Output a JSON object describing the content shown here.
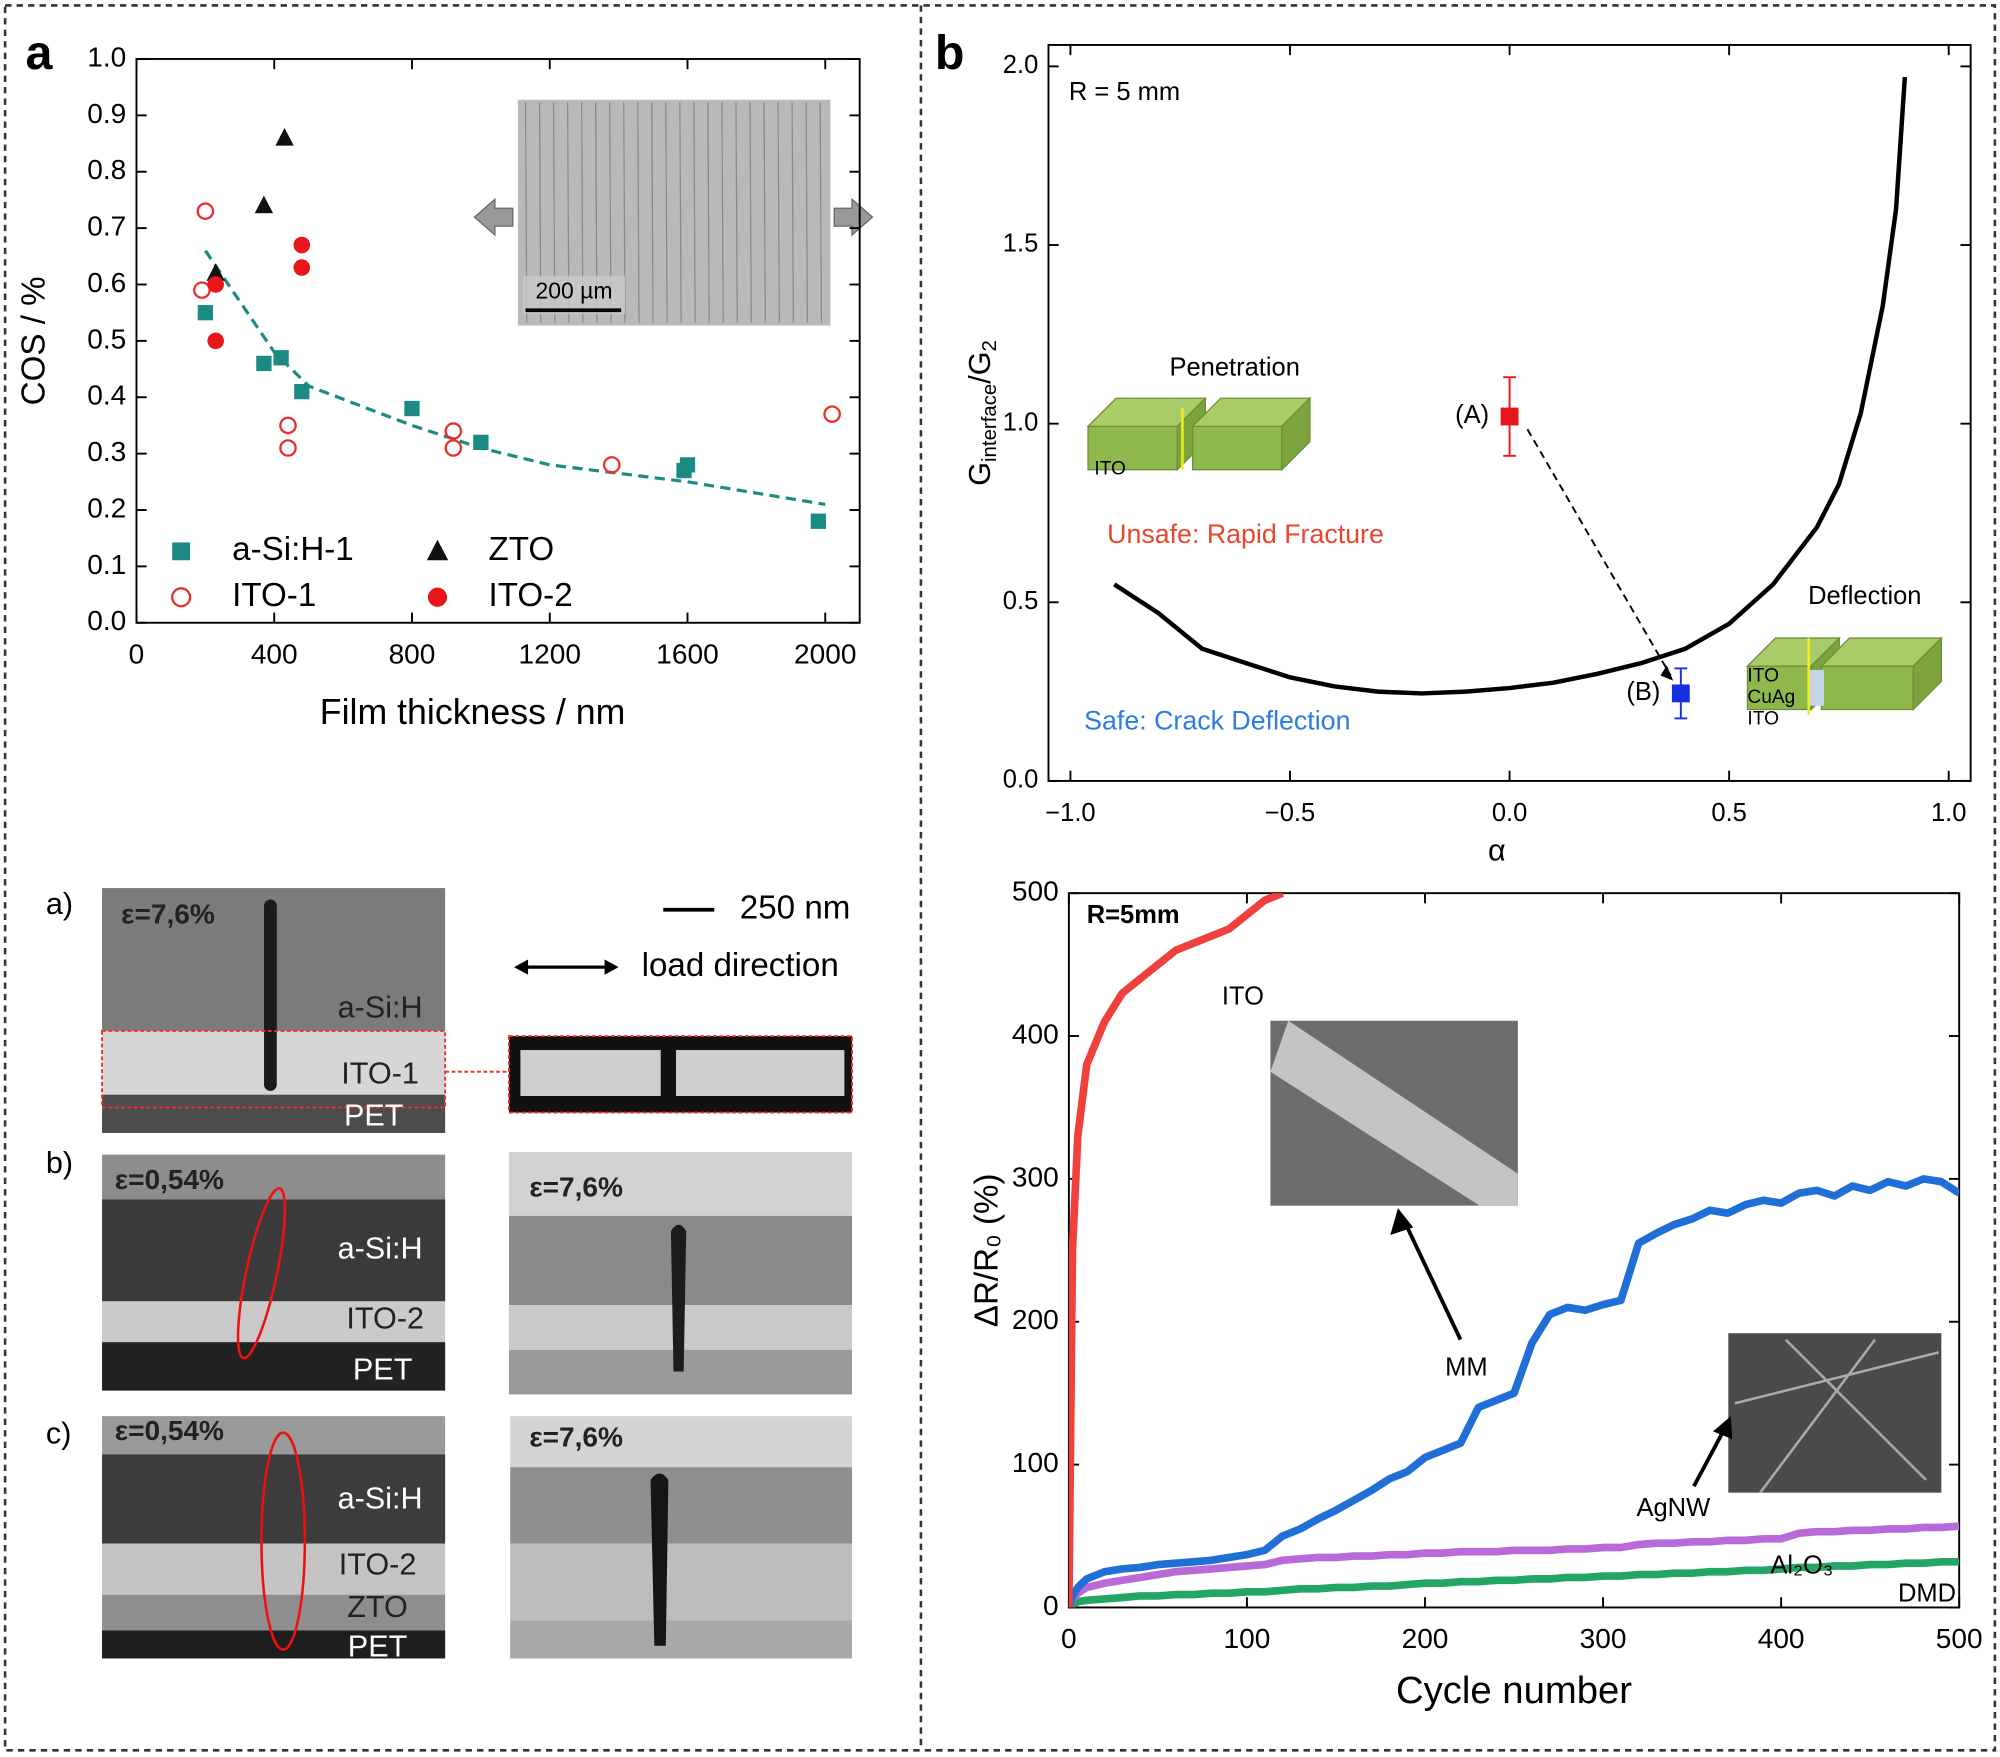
{
  "panel_labels": [
    "a",
    "b"
  ],
  "chart_data": [
    {
      "type": "scatter",
      "xlabel": "Film thickness / nm",
      "ylabel": "COS / %",
      "xlim": [
        0,
        2100
      ],
      "ylim": [
        0,
        1.0
      ],
      "xticks": [
        0,
        400,
        800,
        1200,
        1600,
        2000
      ],
      "yticks": [
        {
          "value": 0,
          "label": "0.0"
        },
        0.1,
        0.2,
        0.3,
        0.4,
        0.5,
        0.6,
        0.7,
        0.8,
        0.9,
        {
          "value": 1,
          "label": "1.0"
        }
      ],
      "legend": "lower left",
      "series": [
        {
          "name": "a-Si:H-1",
          "marker": "square",
          "color": "#1b8a83",
          "x": [
            200,
            370,
            420,
            480,
            800,
            1000,
            1590,
            1600,
            1980
          ],
          "values": [
            0.55,
            0.46,
            0.47,
            0.41,
            0.38,
            0.32,
            0.27,
            0.28,
            0.18
          ]
        },
        {
          "name": "ZTO",
          "marker": "triangle",
          "color": "#111111",
          "x": [
            230,
            370,
            430
          ],
          "values": [
            0.62,
            0.74,
            0.86
          ]
        },
        {
          "name": "ITO-1",
          "marker": "open-circle",
          "color": "#e8312f",
          "x": [
            200,
            190,
            440,
            440,
            920,
            920,
            1380,
            2020
          ],
          "values": [
            0.73,
            0.59,
            0.35,
            0.31,
            0.34,
            0.31,
            0.28,
            0.37
          ]
        },
        {
          "name": "ITO-2",
          "marker": "circle",
          "color": "#e8161b",
          "x": [
            230,
            230,
            480,
            480
          ],
          "values": [
            0.6,
            0.5,
            0.67,
            0.63
          ]
        }
      ],
      "fit": {
        "style": "dashed",
        "color": "#1b8a83",
        "x": [
          200,
          400,
          500,
          800,
          1000,
          1200,
          1600,
          2000
        ],
        "values": [
          0.66,
          0.48,
          0.42,
          0.35,
          0.31,
          0.28,
          0.25,
          0.21
        ]
      },
      "inset_scale": "200 µm"
    },
    {
      "type": "line",
      "annotation": "R = 5 mm",
      "ylabel_parts": [
        "G",
        "interface",
        "/G",
        "2"
      ],
      "xlabel": "α",
      "xlim": [
        -1.05,
        1.05
      ],
      "ylim": [
        0,
        2.06
      ],
      "xticks": [
        {
          "value": -1,
          "label": "−1.0"
        },
        {
          "value": -0.5,
          "label": "−0.5"
        },
        {
          "value": 0,
          "label": "0.0"
        },
        0.5,
        {
          "value": 1,
          "label": "1.0"
        }
      ],
      "yticks": [
        {
          "value": 0,
          "label": "0.0"
        },
        0.5,
        {
          "value": 1,
          "label": "1.0"
        },
        1.5,
        {
          "value": 2,
          "label": "2.0"
        }
      ],
      "x": [
        -0.9,
        -0.8,
        -0.7,
        -0.6,
        -0.5,
        -0.4,
        -0.3,
        -0.2,
        -0.1,
        0,
        0.1,
        0.2,
        0.3,
        0.4,
        0.5,
        0.6,
        0.7,
        0.75,
        0.8,
        0.85,
        0.88,
        0.9
      ],
      "series": [
        {
          "color": "#000000",
          "values": [
            0.55,
            0.47,
            0.37,
            0.33,
            0.29,
            0.265,
            0.25,
            0.245,
            0.25,
            0.26,
            0.275,
            0.3,
            0.33,
            0.37,
            0.44,
            0.55,
            0.71,
            0.83,
            1.03,
            1.33,
            1.6,
            1.97
          ]
        }
      ],
      "points": [
        {
          "label": "(A)",
          "x": 0,
          "value": 1.02,
          "error": 0.11,
          "color": "#e8161b"
        },
        {
          "label": "(B)",
          "x": 0.39,
          "value": 0.245,
          "error": 0.07,
          "color": "#1530e0"
        }
      ],
      "regions": [
        {
          "text": "Unsafe: Rapid Fracture",
          "color": "#e8462f"
        },
        {
          "text": "Safe: Crack Deflection",
          "color": "#2a7de1"
        }
      ],
      "schematics": [
        {
          "title": "Penetration",
          "layers": [
            "ITO"
          ]
        },
        {
          "title": "Deflection",
          "layers": [
            "ITO",
            "CuAg",
            "ITO"
          ]
        }
      ]
    },
    {
      "type": "line",
      "annotation": "R=5mm",
      "ylabel": "ΔR/R₀ (%)",
      "xlabel": "Cycle number",
      "xlim": [
        0,
        500
      ],
      "ylim": [
        0,
        500
      ],
      "xticks": [
        0,
        100,
        200,
        300,
        400,
        500
      ],
      "yticks": [
        0,
        100,
        200,
        300,
        400,
        500
      ],
      "x": [
        0,
        2,
        5,
        10,
        20,
        30,
        40,
        50,
        60,
        70,
        80,
        90,
        100,
        110,
        120,
        130,
        140,
        150,
        160,
        170,
        180,
        190,
        200,
        210,
        220,
        230,
        240,
        250,
        260,
        270,
        280,
        290,
        300,
        310,
        320,
        330,
        340,
        350,
        360,
        370,
        380,
        390,
        400,
        410,
        420,
        430,
        440,
        450,
        460,
        470,
        480,
        490,
        500
      ],
      "series": [
        {
          "name": "ITO",
          "color": "#f0403c",
          "values": [
            0,
            250,
            330,
            380,
            410,
            430,
            440,
            450,
            460,
            465,
            470,
            475,
            485,
            495,
            500,
            null,
            null,
            null,
            null,
            null,
            null,
            null,
            null,
            null,
            null,
            null,
            null,
            null,
            null,
            null,
            null,
            null,
            null,
            null,
            null,
            null,
            null,
            null,
            null,
            null,
            null,
            null,
            null,
            null,
            null,
            null,
            null,
            null,
            null,
            null,
            null,
            null,
            null
          ]
        },
        {
          "name": "MM",
          "color": "#1f6fd6",
          "values": [
            0,
            8,
            14,
            20,
            25,
            27,
            28,
            30,
            31,
            32,
            33,
            35,
            37,
            40,
            50,
            55,
            62,
            68,
            75,
            82,
            90,
            95,
            105,
            110,
            115,
            140,
            145,
            150,
            185,
            205,
            210,
            208,
            212,
            215,
            255,
            262,
            268,
            272,
            278,
            276,
            282,
            285,
            283,
            290,
            292,
            288,
            295,
            292,
            298,
            295,
            300,
            298,
            290
          ]
        },
        {
          "name": "AgNW",
          "color": "#b86ad8",
          "values": [
            0,
            6,
            10,
            14,
            17,
            19,
            21,
            23,
            25,
            26,
            27,
            28,
            29,
            30,
            33,
            34,
            35,
            35,
            36,
            36,
            37,
            37,
            38,
            38,
            39,
            39,
            39,
            40,
            40,
            40,
            41,
            41,
            42,
            42,
            44,
            45,
            45,
            46,
            46,
            47,
            47,
            48,
            48,
            52,
            53,
            53,
            54,
            54,
            55,
            55,
            56,
            56,
            57
          ]
        },
        {
          "name": "Al₂O₃",
          "color": "#23a565",
          "values": [
            0,
            2,
            4,
            5,
            6,
            7,
            8,
            8,
            9,
            9,
            10,
            10,
            11,
            11,
            12,
            13,
            13,
            14,
            14,
            15,
            15,
            16,
            17,
            17,
            18,
            18,
            19,
            19,
            20,
            20,
            21,
            21,
            22,
            22,
            23,
            23,
            24,
            24,
            25,
            25,
            26,
            26,
            27,
            28,
            28,
            29,
            29,
            30,
            30,
            31,
            31,
            32,
            32
          ]
        }
      ],
      "annotations": [
        "DMD"
      ]
    }
  ],
  "micrographs": {
    "scale_bar": "250 nm",
    "load_direction": "load direction",
    "rows": [
      {
        "label": "a)",
        "left": {
          "strain": "ε=7,6%",
          "layers": [
            "a-Si:H",
            "ITO-1",
            "PET"
          ]
        }
      },
      {
        "label": "b)",
        "left": {
          "strain": "ε=0,54%",
          "layers": [
            "a-Si:H",
            "ITO-2",
            "PET"
          ]
        },
        "right": {
          "strain": "ε=7,6%"
        }
      },
      {
        "label": "c)",
        "left": {
          "strain": "ε=0,54%",
          "layers": [
            "a-Si:H",
            "ITO-2",
            "ZTO",
            "PET"
          ]
        },
        "right": {
          "strain": "ε=7,6%"
        }
      }
    ]
  }
}
